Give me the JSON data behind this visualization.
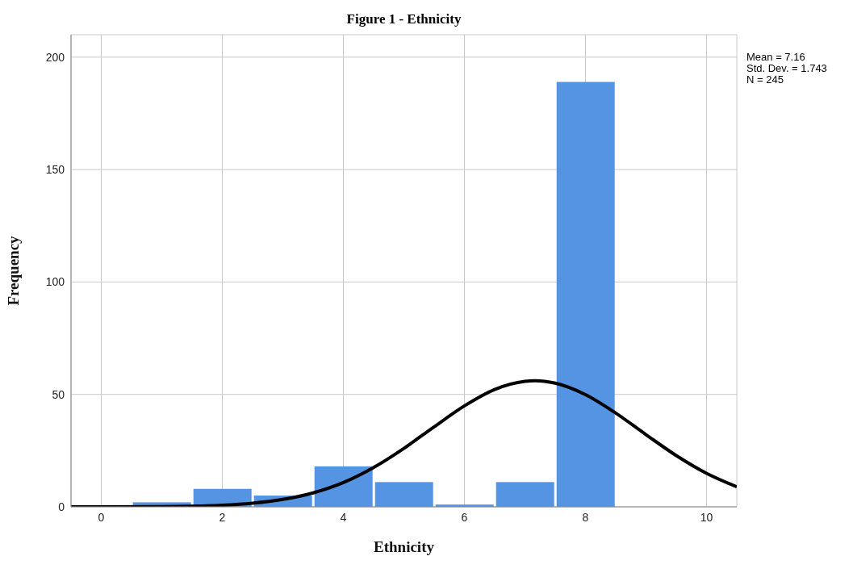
{
  "chart_data": {
    "type": "histogram",
    "title": "Figure 1 - Ethnicity",
    "xlabel": "Ethnicity",
    "ylabel": "Frequency",
    "bins": [
      0.5,
      1.5,
      2.5,
      3.5,
      4.5,
      5.5,
      6.5,
      7.5,
      8.5
    ],
    "series": [
      {
        "color": "#5594e2",
        "values": [
          2,
          8,
          5,
          18,
          11,
          1,
          11,
          189
        ]
      },
      {
        "type": "line",
        "color": "#000000",
        "x": [
          -0.5,
          0,
          1,
          1.5,
          2,
          2.5,
          3,
          3.5,
          4,
          4.5,
          5,
          5.5,
          6,
          6.5,
          7,
          7.16,
          7.5,
          8,
          8.5,
          9,
          9.5,
          10,
          10.5
        ],
        "values": [
          0,
          0,
          0.1,
          0.3,
          0.7,
          1.6,
          3.3,
          6.2,
          10.8,
          17.5,
          26,
          35.6,
          44.9,
          52.2,
          55.8,
          56.1,
          55,
          49.9,
          41.7,
          32.1,
          22.8,
          14.9,
          8.9
        ]
      }
    ],
    "marker": "none",
    "line_style": "solid",
    "xlim": [
      -0.5,
      10.5
    ],
    "xticks": [
      0,
      2,
      4,
      6,
      8,
      10
    ],
    "ylim": [
      0,
      210
    ],
    "yticks": [
      0,
      50,
      100,
      150,
      200
    ],
    "grid": true,
    "legend": false,
    "annotations": [
      "Mean = 7.16",
      "Std. Dev. = 1.743",
      "N = 245"
    ]
  }
}
